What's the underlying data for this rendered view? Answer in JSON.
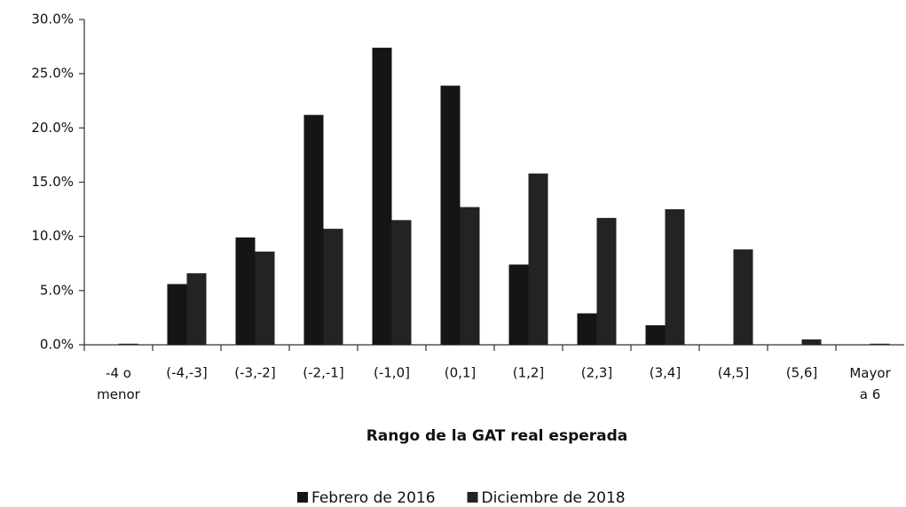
{
  "chart_data": {
    "type": "bar",
    "x_label": "Rango de la GAT real esperada",
    "categories": [
      "-4 o\nmenor",
      "(-4,-3]",
      "(-3,-2]",
      "(-2,-1]",
      "(-1,0]",
      "(0,1]",
      "(1,2]",
      "(2,3]",
      "(3,4]",
      "(4,5]",
      "(5,6]",
      "Mayor\na 6"
    ],
    "series": [
      {
        "name": "Febrero de 2016",
        "color": "#151515",
        "values": [
          0,
          5.6,
          9.9,
          21.2,
          27.4,
          23.9,
          7.4,
          2.9,
          1.8,
          0,
          0,
          0
        ]
      },
      {
        "name": "Diciembre de 2018",
        "color": "#232323",
        "values": [
          0.1,
          6.6,
          8.6,
          10.7,
          11.5,
          12.7,
          15.8,
          11.7,
          12.5,
          8.8,
          0.5,
          0.1
        ]
      }
    ],
    "ylim": [
      0,
      30
    ],
    "yticks": [
      {
        "value": 0,
        "label": "0.0%"
      },
      {
        "value": 5,
        "label": "5.0%"
      },
      {
        "value": 10,
        "label": "10.0%"
      },
      {
        "value": 15,
        "label": "15.0%"
      },
      {
        "value": 20,
        "label": "20.0%"
      },
      {
        "value": 25,
        "label": "25.0%"
      },
      {
        "value": 30,
        "label": "30.0%"
      }
    ],
    "legend": "bottom"
  }
}
